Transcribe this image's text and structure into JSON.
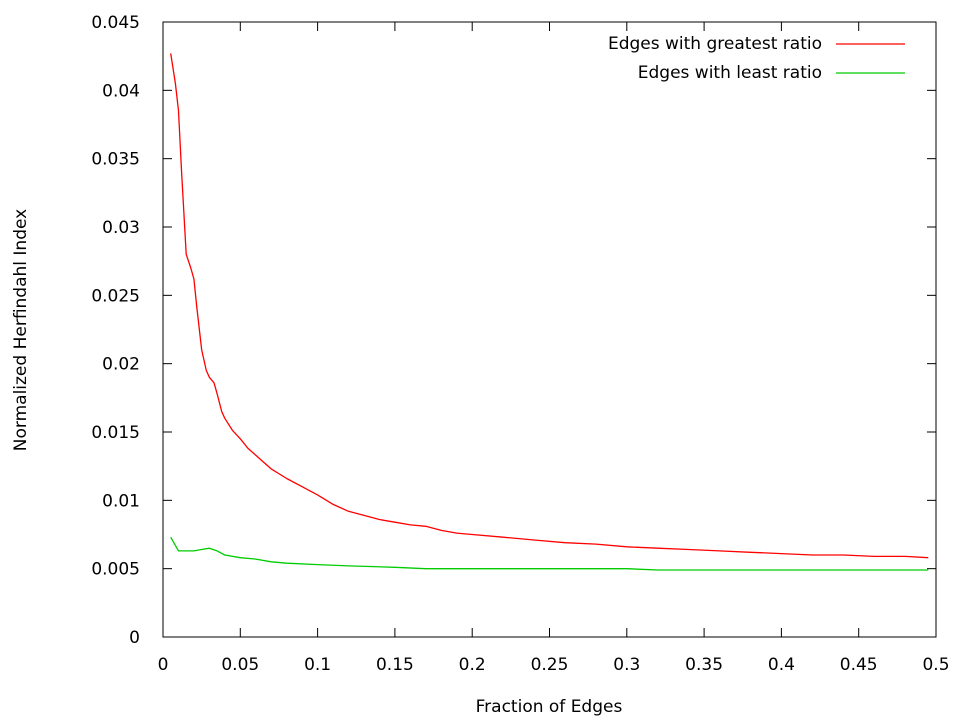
{
  "chart_data": {
    "type": "line",
    "xlabel": "Fraction of Edges",
    "ylabel": "Normalized Herfindahl Index",
    "xlim": [
      0,
      0.5
    ],
    "ylim": [
      0,
      0.045
    ],
    "x_ticks": [
      "0",
      "0.05",
      "0.1",
      "0.15",
      "0.2",
      "0.25",
      "0.3",
      "0.35",
      "0.4",
      "0.45",
      "0.5"
    ],
    "y_ticks": [
      "0",
      "0.005",
      "0.01",
      "0.015",
      "0.02",
      "0.025",
      "0.03",
      "0.035",
      "0.04",
      "0.045"
    ],
    "grid": false,
    "legend_position": "top-right",
    "series": [
      {
        "name": "Edges with greatest ratio",
        "color": "#ff0000",
        "x": [
          0.005,
          0.008,
          0.01,
          0.012,
          0.015,
          0.018,
          0.02,
          0.022,
          0.025,
          0.028,
          0.03,
          0.033,
          0.035,
          0.038,
          0.04,
          0.045,
          0.05,
          0.055,
          0.06,
          0.065,
          0.07,
          0.08,
          0.09,
          0.1,
          0.11,
          0.12,
          0.13,
          0.14,
          0.15,
          0.16,
          0.17,
          0.18,
          0.19,
          0.2,
          0.22,
          0.24,
          0.26,
          0.28,
          0.3,
          0.32,
          0.34,
          0.36,
          0.38,
          0.4,
          0.42,
          0.44,
          0.46,
          0.48,
          0.495
        ],
        "y": [
          0.0427,
          0.0405,
          0.0385,
          0.034,
          0.028,
          0.027,
          0.0262,
          0.024,
          0.021,
          0.0195,
          0.019,
          0.0186,
          0.0178,
          0.0165,
          0.016,
          0.0151,
          0.0145,
          0.0138,
          0.0133,
          0.0128,
          0.0123,
          0.0116,
          0.011,
          0.0104,
          0.0097,
          0.0092,
          0.0089,
          0.0086,
          0.0084,
          0.0082,
          0.0081,
          0.0078,
          0.0076,
          0.0075,
          0.0073,
          0.0071,
          0.0069,
          0.0068,
          0.0066,
          0.0065,
          0.0064,
          0.0063,
          0.0062,
          0.0061,
          0.006,
          0.006,
          0.0059,
          0.0059,
          0.0058
        ]
      },
      {
        "name": "Edges with least ratio",
        "color": "#00cc00",
        "x": [
          0.005,
          0.008,
          0.01,
          0.015,
          0.02,
          0.025,
          0.03,
          0.035,
          0.04,
          0.05,
          0.06,
          0.07,
          0.08,
          0.1,
          0.12,
          0.15,
          0.17,
          0.2,
          0.25,
          0.3,
          0.32,
          0.35,
          0.4,
          0.45,
          0.495
        ],
        "y": [
          0.0073,
          0.0067,
          0.0063,
          0.0063,
          0.0063,
          0.0064,
          0.0065,
          0.0063,
          0.006,
          0.0058,
          0.0057,
          0.0055,
          0.0054,
          0.0053,
          0.0052,
          0.0051,
          0.005,
          0.005,
          0.005,
          0.005,
          0.0049,
          0.0049,
          0.0049,
          0.0049,
          0.0049
        ]
      }
    ]
  }
}
